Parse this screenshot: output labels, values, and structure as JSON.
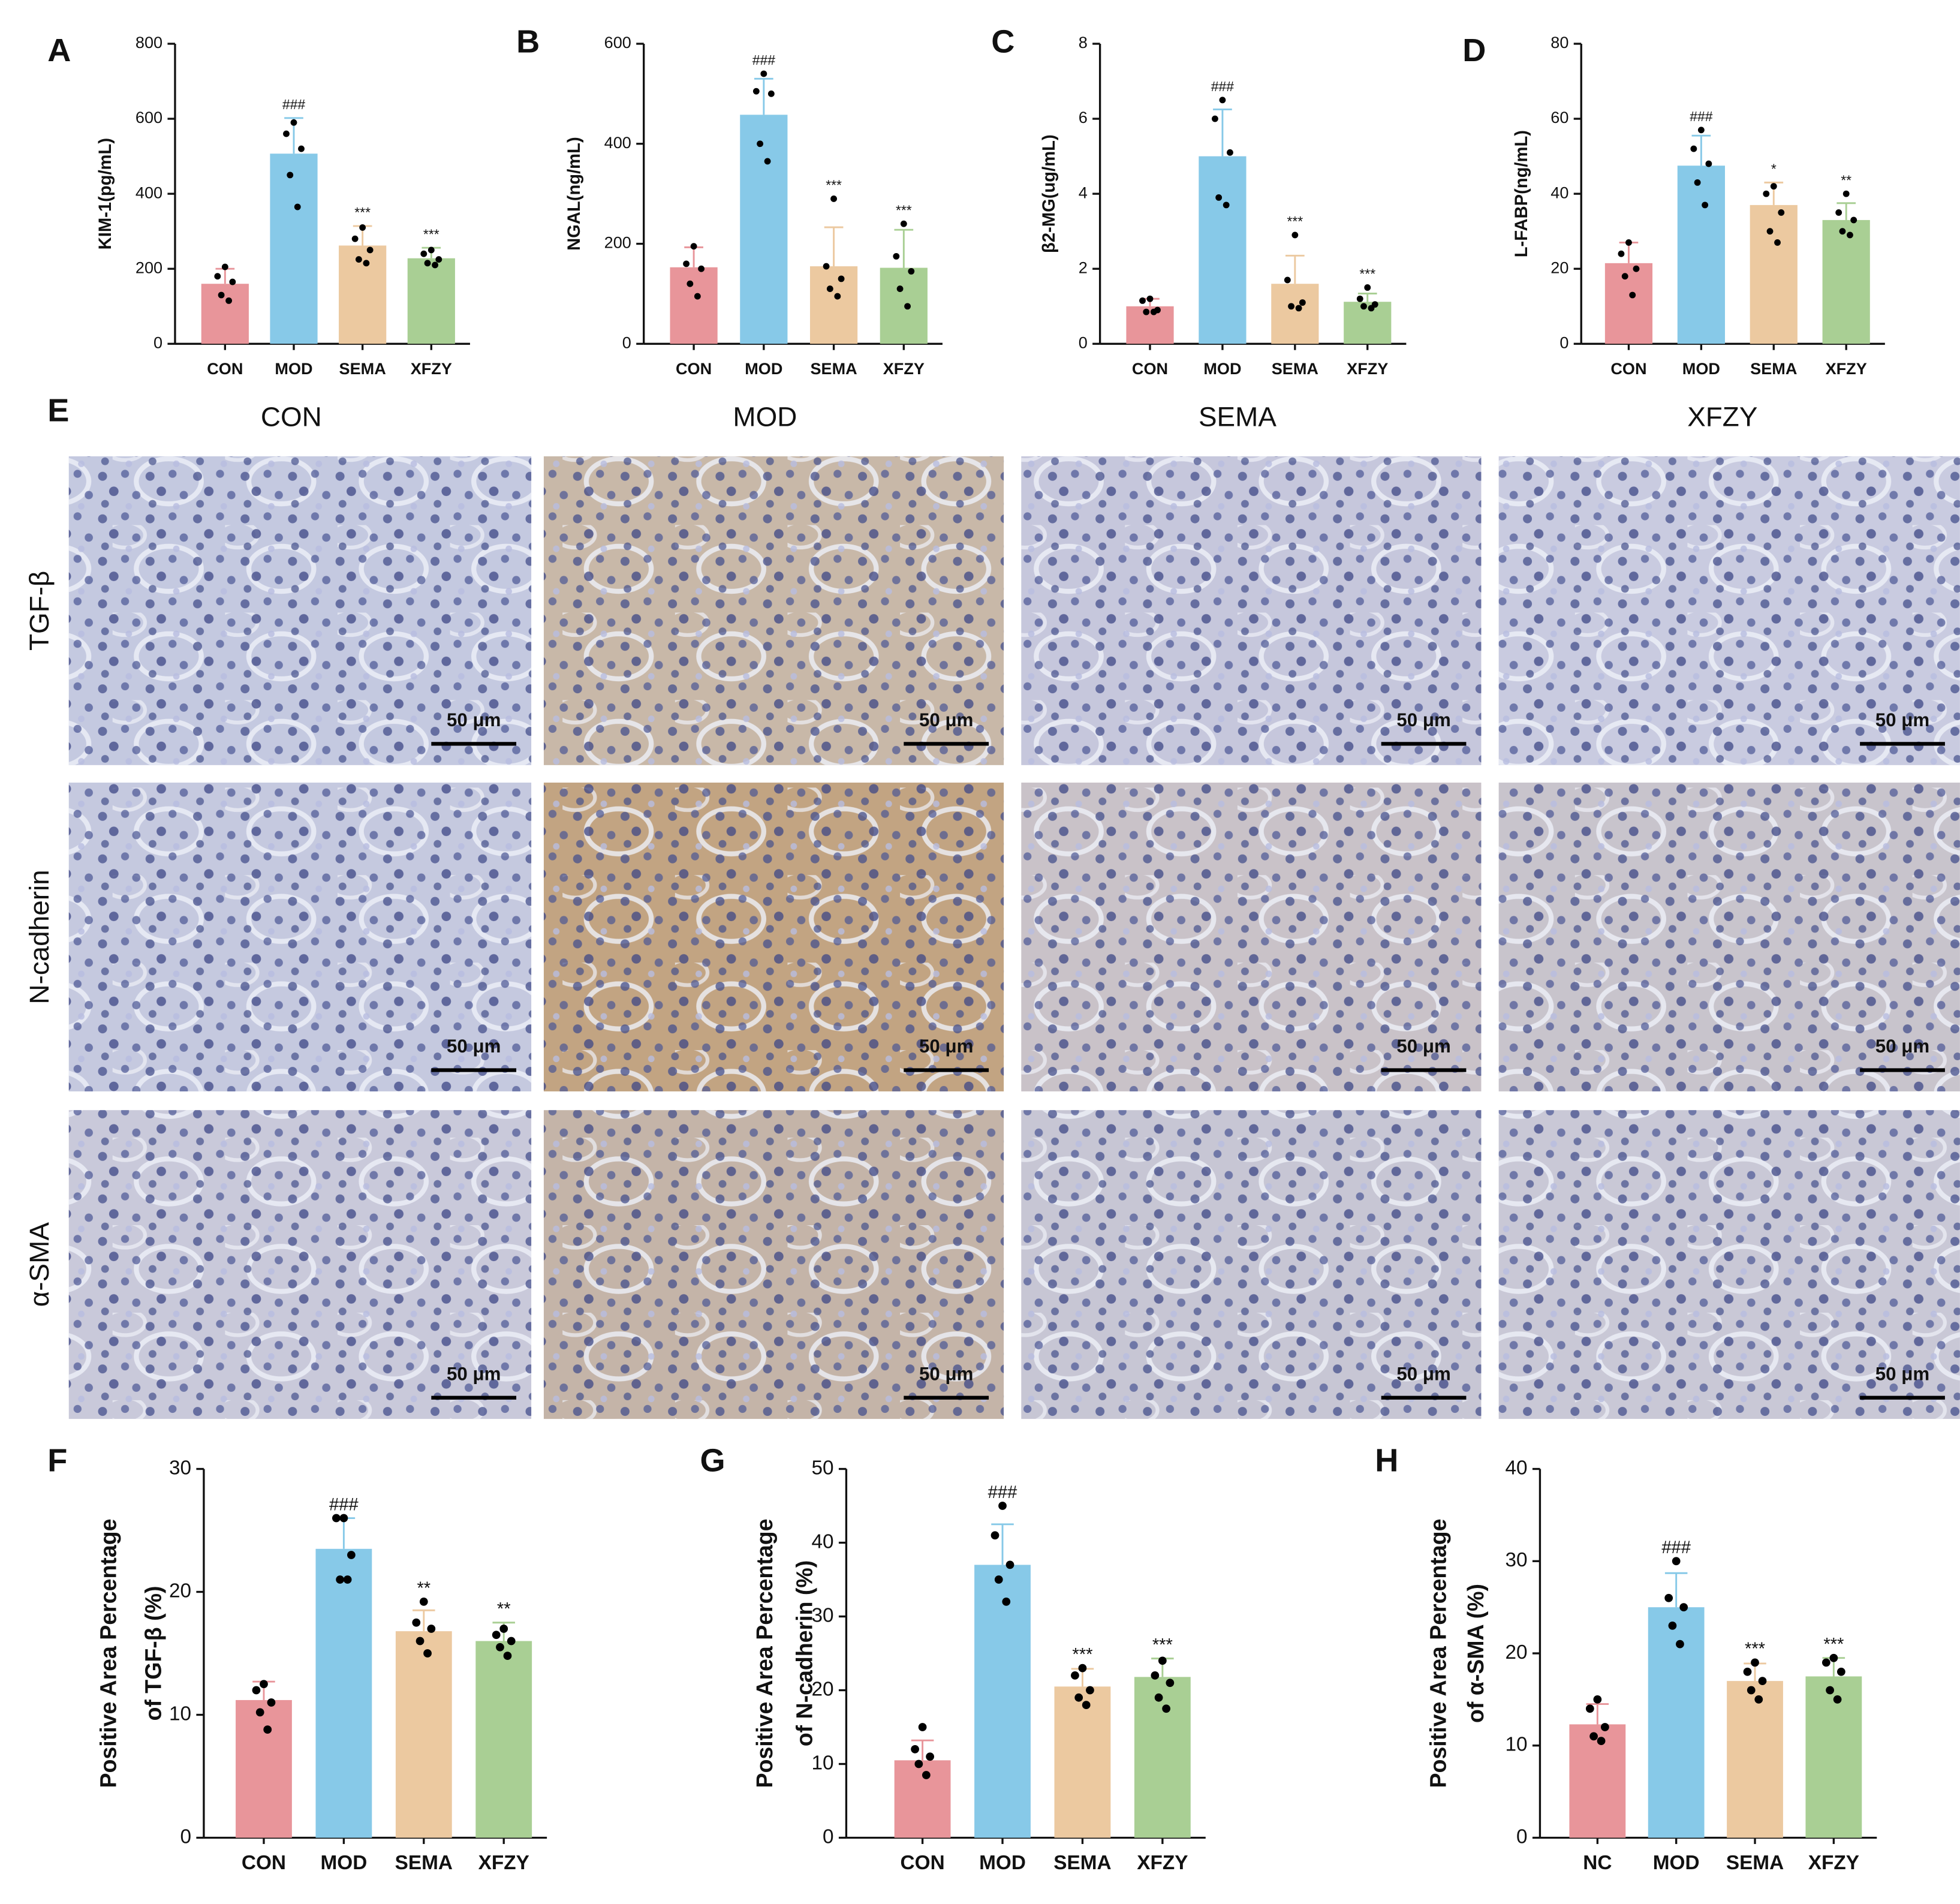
{
  "chart_data": [
    {
      "type": "bar",
      "panel": "A",
      "ylabel": [
        "KIM-1(pg/mL)"
      ],
      "categories": [
        "CON",
        "MOD",
        "SEMA",
        "XFZY"
      ],
      "values": [
        160,
        507,
        262,
        228
      ],
      "errors": [
        40,
        95,
        52,
        28
      ],
      "points": [
        [
          205,
          180,
          165,
          130,
          115
        ],
        [
          590,
          560,
          520,
          450,
          365
        ],
        [
          310,
          280,
          250,
          225,
          215
        ],
        [
          250,
          240,
          225,
          215,
          210
        ]
      ],
      "annotations": [
        null,
        "###",
        "***",
        "***"
      ],
      "colors": [
        "#e8959a",
        "#87c9e8",
        "#ecc9a0",
        "#a9cf94"
      ],
      "ylim": [
        0,
        800
      ],
      "yticks": [
        0,
        200,
        400,
        600,
        800
      ]
    },
    {
      "type": "bar",
      "panel": "B",
      "ylabel": [
        "NGAL(ng/mL)"
      ],
      "categories": [
        "CON",
        "MOD",
        "SEMA",
        "XFZY"
      ],
      "values": [
        153,
        458,
        155,
        152
      ],
      "errors": [
        40,
        72,
        78,
        76
      ],
      "points": [
        [
          195,
          160,
          150,
          120,
          95
        ],
        [
          540,
          505,
          500,
          400,
          365
        ],
        [
          290,
          155,
          130,
          110,
          95
        ],
        [
          240,
          175,
          145,
          110,
          75
        ]
      ],
      "annotations": [
        null,
        "###",
        "***",
        "***"
      ],
      "colors": [
        "#e8959a",
        "#87c9e8",
        "#ecc9a0",
        "#a9cf94"
      ],
      "ylim": [
        0,
        600
      ],
      "yticks": [
        0,
        200,
        400,
        600
      ]
    },
    {
      "type": "bar",
      "panel": "C",
      "ylabel": [
        "β2-MG(ug/mL)"
      ],
      "categories": [
        "CON",
        "MOD",
        "SEMA",
        "XFZY"
      ],
      "values": [
        1.0,
        5.0,
        1.6,
        1.12
      ],
      "errors": [
        0.2,
        1.25,
        0.75,
        0.22
      ],
      "points": [
        [
          1.2,
          1.15,
          0.9,
          0.85,
          0.85
        ],
        [
          6.5,
          6.0,
          5.1,
          3.9,
          3.7
        ],
        [
          2.9,
          1.7,
          1.1,
          1.0,
          0.95
        ],
        [
          1.5,
          1.2,
          1.05,
          1.0,
          0.95
        ]
      ],
      "annotations": [
        null,
        "###",
        "***",
        "***"
      ],
      "colors": [
        "#e8959a",
        "#87c9e8",
        "#ecc9a0",
        "#a9cf94"
      ],
      "ylim": [
        0,
        8
      ],
      "yticks": [
        0,
        2,
        4,
        6,
        8
      ]
    },
    {
      "type": "bar",
      "panel": "D",
      "ylabel": [
        "L-FABP(ng/mL)"
      ],
      "categories": [
        "CON",
        "MOD",
        "SEMA",
        "XFZY"
      ],
      "values": [
        21.5,
        47.5,
        37,
        33
      ],
      "errors": [
        5.5,
        8,
        6,
        4.5
      ],
      "points": [
        [
          27,
          24,
          20,
          18,
          13
        ],
        [
          57,
          52,
          48,
          43,
          37
        ],
        [
          42,
          40,
          35,
          30,
          27
        ],
        [
          40,
          35,
          33,
          30,
          29
        ]
      ],
      "annotations": [
        null,
        "###",
        "*",
        "**"
      ],
      "colors": [
        "#e8959a",
        "#87c9e8",
        "#ecc9a0",
        "#a9cf94"
      ],
      "ylim": [
        0,
        80
      ],
      "yticks": [
        0,
        20,
        40,
        60,
        80
      ]
    },
    {
      "type": "bar",
      "panel": "F",
      "ylabel": [
        "Positive Area Percentage",
        "of TGF-β (%)"
      ],
      "categories": [
        "CON",
        "MOD",
        "SEMA",
        "XFZY"
      ],
      "values": [
        11.2,
        23.5,
        16.8,
        16.0
      ],
      "errors": [
        1.5,
        2.5,
        1.7,
        1.5
      ],
      "points": [
        [
          12.5,
          12,
          11,
          10.2,
          8.8
        ],
        [
          26,
          26,
          23,
          21,
          21
        ],
        [
          19.2,
          17.5,
          17,
          16,
          15
        ],
        [
          17,
          16.5,
          16,
          15.5,
          14.8
        ]
      ],
      "annotations": [
        null,
        "###",
        "**",
        "**"
      ],
      "colors": [
        "#e8959a",
        "#87c9e8",
        "#ecc9a0",
        "#a9cf94"
      ],
      "ylim": [
        0,
        30
      ],
      "yticks": [
        0,
        10,
        20,
        30
      ]
    },
    {
      "type": "bar",
      "panel": "G",
      "ylabel": [
        "Positive Area Percentage",
        "of N-cadherin (%)"
      ],
      "categories": [
        "CON",
        "MOD",
        "SEMA",
        "XFZY"
      ],
      "values": [
        10.5,
        37,
        20.5,
        21.8
      ],
      "errors": [
        2.7,
        5.5,
        2.4,
        2.5
      ],
      "points": [
        [
          15,
          12,
          11,
          10,
          8.5
        ],
        [
          45,
          41,
          37,
          35,
          32
        ],
        [
          23,
          22,
          20,
          19,
          18
        ],
        [
          24,
          22,
          21,
          19,
          17.5
        ]
      ],
      "annotations": [
        null,
        "###",
        "***",
        "***"
      ],
      "colors": [
        "#e8959a",
        "#87c9e8",
        "#ecc9a0",
        "#a9cf94"
      ],
      "ylim": [
        0,
        50
      ],
      "yticks": [
        0,
        10,
        20,
        30,
        40,
        50
      ]
    },
    {
      "type": "bar",
      "panel": "H",
      "ylabel": [
        "Positive Area Percentage",
        "of α-SMA (%)"
      ],
      "categories": [
        "NC",
        "MOD",
        "SEMA",
        "XFZY"
      ],
      "values": [
        12.3,
        25,
        17,
        17.5
      ],
      "errors": [
        2.2,
        3.7,
        1.9,
        2.0
      ],
      "points": [
        [
          15,
          14,
          12,
          11,
          10.5
        ],
        [
          30,
          26,
          25,
          23,
          21
        ],
        [
          19,
          18,
          17,
          16,
          15
        ],
        [
          19.5,
          19,
          18,
          16,
          15
        ]
      ],
      "annotations": [
        null,
        "###",
        "***",
        "***"
      ],
      "colors": [
        "#e8959a",
        "#87c9e8",
        "#ecc9a0",
        "#a9cf94"
      ],
      "ylim": [
        0,
        40
      ],
      "yticks": [
        0,
        10,
        20,
        30,
        40
      ]
    }
  ],
  "micrographs": {
    "panel": "E",
    "columns": [
      "CON",
      "MOD",
      "SEMA",
      "XFZY"
    ],
    "rows": [
      "TGF-β",
      "N-cadherin",
      "α-SMA"
    ],
    "scale_bar": "50 μm"
  }
}
